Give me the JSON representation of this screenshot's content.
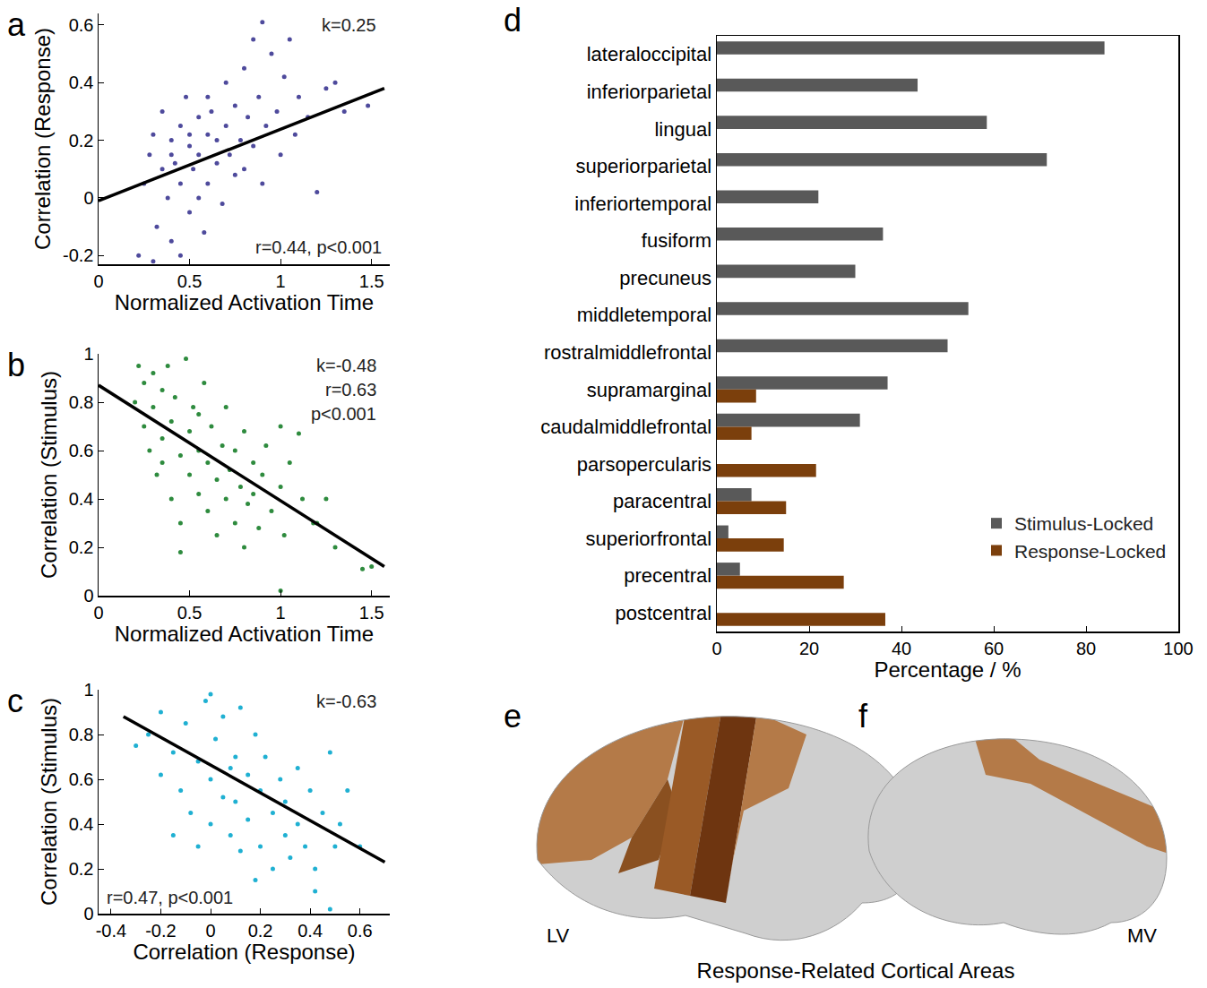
{
  "chart_data": [
    {
      "type": "scatter",
      "panel": "a",
      "x_label": "Normalized Activation Time",
      "y_label": "Correlation (Response)",
      "xlim": [
        0,
        1.6
      ],
      "xticks": [
        0,
        0.5,
        1,
        1.5
      ],
      "ylim": [
        -0.23,
        0.64
      ],
      "yticks": [
        -0.2,
        0,
        0.2,
        0.4,
        0.6
      ],
      "annotations": [
        "k=0.25",
        "r=0.44, p<0.001"
      ],
      "series": [
        {
          "type": "scatter",
          "marker": "circle",
          "color": "#4e4a9c",
          "x": [
            0.22,
            0.25,
            0.28,
            0.3,
            0.32,
            0.35,
            0.35,
            0.38,
            0.4,
            0.4,
            0.42,
            0.45,
            0.45,
            0.48,
            0.5,
            0.5,
            0.52,
            0.55,
            0.55,
            0.58,
            0.6,
            0.6,
            0.62,
            0.65,
            0.65,
            0.68,
            0.7,
            0.7,
            0.72,
            0.75,
            0.75,
            0.78,
            0.8,
            0.8,
            0.82,
            0.85,
            0.85,
            0.88,
            0.9,
            0.9,
            0.92,
            0.95,
            0.98,
            1.0,
            1.02,
            1.05,
            1.08,
            1.1,
            1.15,
            1.2,
            1.25,
            1.3,
            1.35,
            1.48,
            0.3,
            0.45,
            0.6,
            0.55,
            0.4,
            0.5
          ],
          "y": [
            -0.2,
            0.05,
            0.15,
            0.22,
            -0.1,
            0.3,
            0.1,
            0.0,
            0.2,
            -0.15,
            0.12,
            0.25,
            0.05,
            0.35,
            0.18,
            -0.05,
            0.1,
            0.28,
            0.15,
            -0.12,
            0.22,
            0.05,
            0.3,
            0.12,
            0.2,
            -0.02,
            0.25,
            0.4,
            0.15,
            0.08,
            0.32,
            0.2,
            0.45,
            0.1,
            0.28,
            0.55,
            0.18,
            0.35,
            0.61,
            0.05,
            0.25,
            0.5,
            0.3,
            0.15,
            0.42,
            0.55,
            0.22,
            0.35,
            0.28,
            0.02,
            0.38,
            0.4,
            0.3,
            0.32,
            -0.22,
            -0.2,
            0.35,
            0.0,
            0.15,
            0.22
          ]
        },
        {
          "type": "line",
          "line_style": "solid",
          "color": "#000000",
          "x": [
            0,
            1.57
          ],
          "y": [
            -0.01,
            0.38
          ]
        }
      ]
    },
    {
      "type": "scatter",
      "panel": "b",
      "x_label": "Normalized Activation Time",
      "y_label": "Correlation (Stimulus)",
      "xlim": [
        0,
        1.6
      ],
      "xticks": [
        0,
        0.5,
        1,
        1.5
      ],
      "ylim": [
        0,
        1
      ],
      "yticks": [
        0,
        0.2,
        0.4,
        0.6,
        0.8,
        1
      ],
      "annotations": [
        "k=-0.48",
        "r=0.63",
        "p<0.001"
      ],
      "series": [
        {
          "type": "scatter",
          "marker": "circle",
          "color": "#2e8b3e",
          "x": [
            0.2,
            0.22,
            0.25,
            0.25,
            0.28,
            0.3,
            0.3,
            0.32,
            0.35,
            0.35,
            0.38,
            0.4,
            0.4,
            0.42,
            0.45,
            0.45,
            0.48,
            0.5,
            0.5,
            0.52,
            0.55,
            0.55,
            0.58,
            0.6,
            0.6,
            0.62,
            0.65,
            0.65,
            0.68,
            0.7,
            0.7,
            0.72,
            0.75,
            0.75,
            0.78,
            0.8,
            0.8,
            0.82,
            0.85,
            0.88,
            0.9,
            0.92,
            0.95,
            1.0,
            1.0,
            1.02,
            1.05,
            1.1,
            1.12,
            1.18,
            1.2,
            1.25,
            1.3,
            1.45,
            1.5,
            1.0,
            0.45,
            0.35,
            0.55,
            0.85
          ],
          "y": [
            0.8,
            0.95,
            0.7,
            0.88,
            0.6,
            0.92,
            0.78,
            0.5,
            0.85,
            0.65,
            0.95,
            0.72,
            0.4,
            0.82,
            0.58,
            0.3,
            0.98,
            0.68,
            0.5,
            0.78,
            0.42,
            0.6,
            0.88,
            0.55,
            0.35,
            0.7,
            0.48,
            0.25,
            0.62,
            0.4,
            0.78,
            0.52,
            0.3,
            0.6,
            0.45,
            0.68,
            0.2,
            0.38,
            0.55,
            0.28,
            0.5,
            0.62,
            0.35,
            0.45,
            0.7,
            0.25,
            0.55,
            0.67,
            0.4,
            0.3,
            0.3,
            0.4,
            0.2,
            0.11,
            0.12,
            0.02,
            0.18,
            0.55,
            0.75,
            0.42
          ]
        },
        {
          "type": "line",
          "line_style": "solid",
          "color": "#000000",
          "x": [
            0,
            1.57
          ],
          "y": [
            0.87,
            0.12
          ]
        }
      ]
    },
    {
      "type": "scatter",
      "panel": "c",
      "x_label": "Correlation (Response)",
      "y_label": "Correlation (Stimulus)",
      "xlim": [
        -0.45,
        0.72
      ],
      "xticks": [
        -0.4,
        -0.2,
        0,
        0.2,
        0.4,
        0.6
      ],
      "ylim": [
        0,
        1
      ],
      "yticks": [
        0,
        0.2,
        0.4,
        0.6,
        0.8,
        1
      ],
      "annotations": [
        "k=-0.63",
        "r=0.47, p<0.001"
      ],
      "series": [
        {
          "type": "scatter",
          "marker": "circle",
          "color": "#1fb0d2",
          "x": [
            -0.3,
            -0.25,
            -0.2,
            -0.2,
            -0.15,
            -0.12,
            -0.1,
            -0.08,
            -0.05,
            -0.02,
            0.0,
            0.0,
            0.02,
            0.05,
            0.05,
            0.08,
            0.1,
            0.1,
            0.12,
            0.12,
            0.15,
            0.15,
            0.18,
            0.2,
            0.2,
            0.22,
            0.25,
            0.25,
            0.28,
            0.3,
            0.3,
            0.32,
            0.35,
            0.38,
            0.4,
            0.42,
            0.45,
            0.48,
            0.5,
            0.52,
            0.55,
            0.6,
            0.48,
            0.42,
            -0.05,
            0.0,
            0.08,
            -0.15,
            0.18,
            0.35
          ],
          "y": [
            0.75,
            0.8,
            0.62,
            0.9,
            0.72,
            0.55,
            0.85,
            0.45,
            0.68,
            0.95,
            0.6,
            0.4,
            0.78,
            0.52,
            0.88,
            0.35,
            0.7,
            0.5,
            0.92,
            0.28,
            0.62,
            0.42,
            0.8,
            0.55,
            0.3,
            0.7,
            0.45,
            0.2,
            0.6,
            0.35,
            0.5,
            0.25,
            0.4,
            0.3,
            0.55,
            0.2,
            0.45,
            0.72,
            0.3,
            0.4,
            0.55,
            0.3,
            0.02,
            0.1,
            0.3,
            0.98,
            0.65,
            0.35,
            0.15,
            0.65
          ]
        },
        {
          "type": "line",
          "line_style": "solid",
          "color": "#000000",
          "x": [
            -0.35,
            0.7
          ],
          "y": [
            0.88,
            0.23
          ]
        }
      ]
    },
    {
      "type": "bar",
      "panel": "d",
      "orientation": "horizontal",
      "legend": "lower right",
      "x_label": "Percentage / %",
      "xlim": [
        0,
        100
      ],
      "xticks": [
        0,
        20,
        40,
        60,
        80,
        100
      ],
      "categories": [
        "lateraloccipital",
        "inferiorparietal",
        "lingual",
        "superiorparietal",
        "inferiortemporal",
        "fusiform",
        "precuneus",
        "middletemporal",
        "rostralmiddlefrontal",
        "supramarginal",
        "caudalmiddlefrontal",
        "parsopercularis",
        "paracentral",
        "superiorfrontal",
        "precentral",
        "postcentral"
      ],
      "series": [
        {
          "name": "Stimulus-Locked",
          "color": "#595959",
          "values": [
            84,
            43.5,
            58.5,
            71.5,
            22,
            36,
            30,
            54.5,
            50,
            37,
            31,
            0,
            7.5,
            2.5,
            5,
            0
          ]
        },
        {
          "name": "Response-Locked",
          "color": "#7b3f0c",
          "values": [
            0,
            0,
            0,
            0,
            0,
            0,
            0,
            0,
            0,
            8.5,
            7.5,
            21.5,
            15,
            14.5,
            27.5,
            36.5
          ]
        }
      ]
    }
  ],
  "diagram": {
    "panels": [
      {
        "label": "e",
        "view": "LV"
      },
      {
        "label": "f",
        "view": "MV"
      }
    ],
    "caption": "Response-Related Cortical Areas"
  }
}
